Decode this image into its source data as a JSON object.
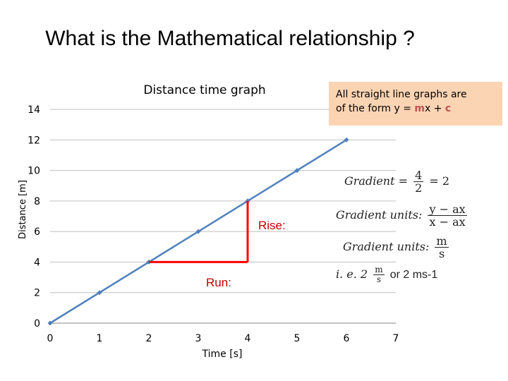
{
  "slide": {
    "title": "What is the Mathematical relationship ?"
  },
  "callout": {
    "line1": "All straight line graphs are",
    "line2_prefix": "of the form y = ",
    "m": "m",
    "line2_mid": "x + ",
    "c": "c"
  },
  "annotations": {
    "rise": "Rise:",
    "run": "Run:"
  },
  "equations": {
    "gradient_label": "Gradient",
    "gradient_eq": "=",
    "gradient_num": "4",
    "gradient_den": "2",
    "gradient_result": "= 2",
    "units1_label": "Gradient units:",
    "units1_num": "y − ax",
    "units1_den": "x − ax",
    "units2_label": "Gradient units:",
    "units2_num": "m",
    "units2_den": "s",
    "ie_prefix": "i. e. 2",
    "ie_num": "m",
    "ie_den": "s",
    "ie_suffix": "or 2 ms-1"
  },
  "colors": {
    "series": "#4f81bd",
    "rise_run": "#ff0000",
    "callout_bg": "#fbd4b4",
    "annotation_text": "#c00000",
    "gridline": "#bfbfbf"
  },
  "chart_data": {
    "type": "line",
    "title": "Distance time graph",
    "xlabel": "Time [s]",
    "ylabel": "Distance [m]",
    "x": [
      0,
      1,
      2,
      3,
      4,
      5,
      6
    ],
    "series": [
      {
        "values": [
          0,
          2,
          4,
          6,
          8,
          10,
          12
        ]
      }
    ],
    "xticks": [
      "0",
      "1",
      "2",
      "3",
      "4",
      "5",
      "6",
      "7"
    ],
    "yticks": [
      "0",
      "2",
      "4",
      "6",
      "8",
      "10",
      "12",
      "14"
    ],
    "xlim": [
      0,
      7
    ],
    "ylim": [
      0,
      14
    ],
    "grid": "horizontal",
    "legend": "none",
    "rise_run": {
      "x1": 2,
      "x2": 4,
      "y1": 4,
      "y2": 8
    }
  }
}
